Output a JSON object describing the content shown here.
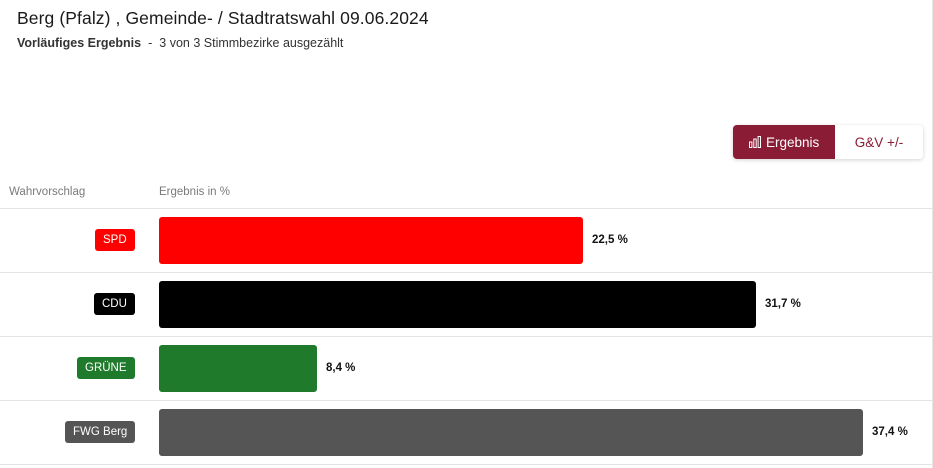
{
  "header": {
    "title": "Berg (Pfalz) , Gemeinde- / Stadtratswahl 09.06.2024",
    "status_label": "Vorläufiges Ergebnis",
    "status_sep": "-",
    "status_detail": "3 von 3 Stimmbezirke ausgezählt"
  },
  "toggle": {
    "result_label": "Ergebnis",
    "diff_label": "G&V +/-",
    "active": "result"
  },
  "columns": {
    "party": "Wahrvorschlag",
    "result": "Ergebnis in %"
  },
  "chart_data": {
    "type": "bar",
    "orientation": "horizontal",
    "title": "",
    "xlabel": "Ergebnis in %",
    "ylabel": "Wahrvorschlag",
    "xlim": [
      0,
      37.4
    ],
    "categories": [
      "SPD",
      "CDU",
      "GRÜNE",
      "FWG Berg"
    ],
    "values": [
      22.5,
      31.7,
      8.4,
      37.4
    ],
    "value_labels": [
      "22,5 %",
      "31,7 %",
      "8,4 %",
      "37,4 %"
    ],
    "colors": [
      "#ff0000",
      "#000000",
      "#207a2c",
      "#555555"
    ]
  }
}
